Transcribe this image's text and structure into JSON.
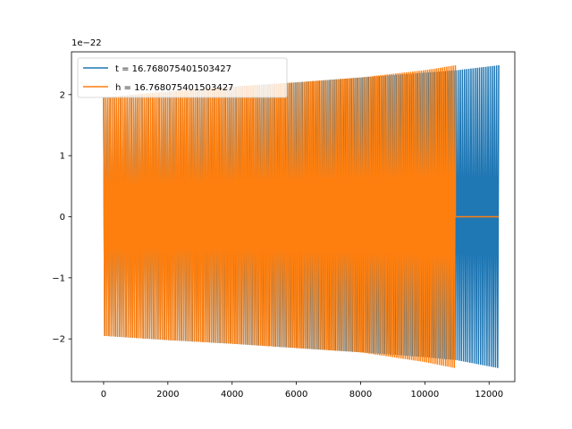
{
  "chart_data": {
    "type": "line",
    "title": "",
    "xlabel": "",
    "ylabel": "",
    "y_offset_label": "1e−22",
    "xlim": [
      -1000,
      12800
    ],
    "ylim": [
      -2.7,
      2.7
    ],
    "xticks": [
      0,
      2000,
      4000,
      6000,
      8000,
      10000,
      12000
    ],
    "xtick_labels": [
      "0",
      "2000",
      "4000",
      "6000",
      "8000",
      "10000",
      "12000"
    ],
    "yticks": [
      -2,
      -1,
      0,
      1,
      2
    ],
    "ytick_labels": [
      "−2",
      "−1",
      "0",
      "1",
      "2"
    ],
    "grid": false,
    "legend_position": "top-left",
    "series": [
      {
        "name": "t = 16.768075401503427",
        "color": "#1f77b4",
        "x_range": [
          0,
          12300
        ],
        "cycles": 185,
        "envelope_x": [
          0,
          2000,
          4000,
          6000,
          8000,
          10000,
          11000,
          12300
        ],
        "envelope_upper": [
          1.95,
          2.05,
          2.13,
          2.2,
          2.28,
          2.36,
          2.4,
          2.48
        ],
        "envelope_lower": [
          -1.95,
          -2.02,
          -2.08,
          -2.15,
          -2.22,
          -2.3,
          -2.35,
          -2.48
        ]
      },
      {
        "name": "h = 16.768075401503427",
        "color": "#ff7f0e",
        "x_range": [
          0,
          10950
        ],
        "cycles": 165,
        "envelope_x": [
          0,
          2000,
          4000,
          6000,
          8000,
          10000,
          10950
        ],
        "envelope_upper": [
          1.95,
          2.05,
          2.13,
          2.2,
          2.28,
          2.4,
          2.48
        ],
        "envelope_lower": [
          -1.95,
          -2.02,
          -2.08,
          -2.15,
          -2.22,
          -2.38,
          -2.48
        ],
        "flat_after_x": [
          10950,
          12300
        ],
        "flat_value": 0
      }
    ]
  }
}
